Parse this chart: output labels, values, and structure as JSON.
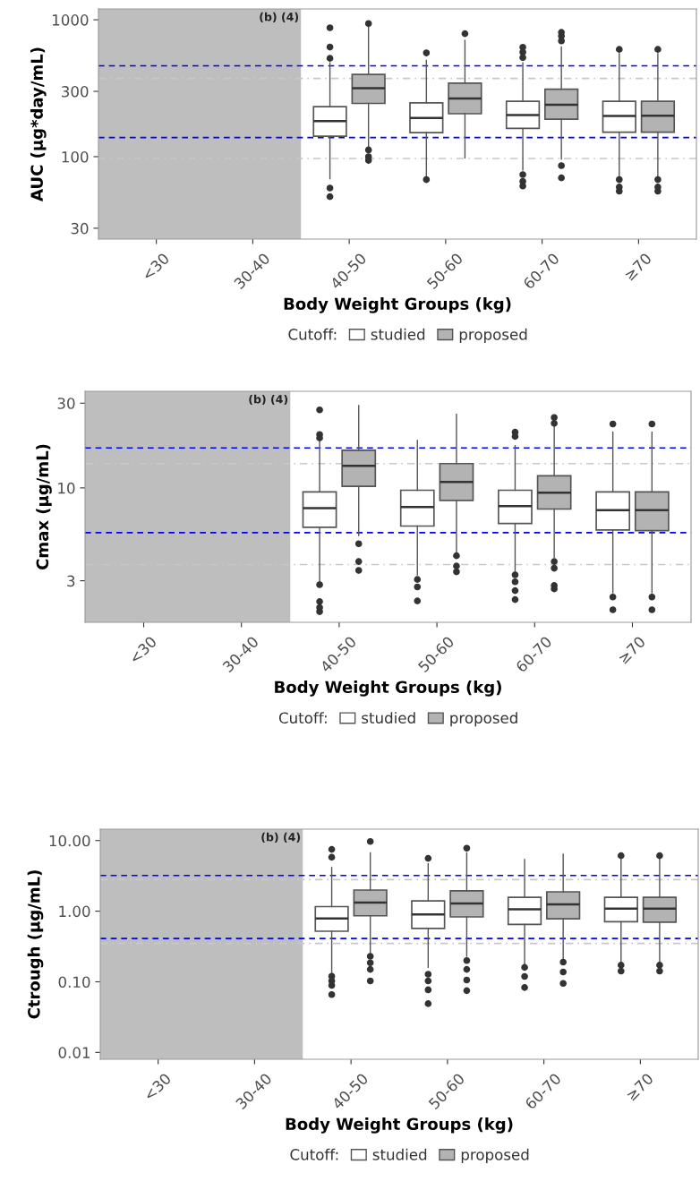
{
  "chart_data": [
    {
      "type": "box",
      "categories": [
        "<30",
        "30-40",
        "40-50",
        "50-60",
        "60-70",
        "≥70"
      ],
      "xlabel": "Body Weight Groups (kg)",
      "ylabel": "AUC (µg*day/mL)",
      "log": true,
      "ylim": [
        25,
        1200
      ],
      "yticks": [
        30,
        100,
        300,
        1000
      ],
      "grid": false,
      "legend": "bottom",
      "legend_title": "Cutoff:",
      "series": [
        {
          "name": "studied",
          "color": "#ffffff",
          "boxes": [
            null,
            null,
            {
              "low": 69,
              "q1": 141,
              "median": 182,
              "q3": 232,
              "high": 485,
              "outliers": [
                874,
                632,
                523,
                59,
                51
              ]
            },
            {
              "low": 71,
              "q1": 150,
              "median": 192,
              "q3": 247,
              "high": 505,
              "outliers": [
                573,
                68
              ]
            },
            {
              "low": 80,
              "q1": 161,
              "median": 201,
              "q3": 254,
              "high": 485,
              "outliers": [
                630,
                580,
                530,
                74,
                66,
                61
              ]
            },
            {
              "low": 71,
              "q1": 151,
              "median": 198,
              "q3": 254,
              "high": 565,
              "outliers": [
                608,
                68,
                60,
                56
              ]
            }
          ]
        },
        {
          "name": "proposed",
          "color": "#b3b3b3",
          "boxes": [
            null,
            null,
            {
              "low": 116,
              "q1": 245,
              "median": 316,
              "q3": 399,
              "high": 900,
              "outliers": [
                940,
                112,
                100,
                94
              ]
            },
            {
              "low": 98,
              "q1": 206,
              "median": 266,
              "q3": 344,
              "high": 708,
              "outliers": [
                792
              ]
            },
            {
              "low": 96,
              "q1": 188,
              "median": 239,
              "q3": 311,
              "high": 632,
              "outliers": [
                810,
                760,
                700,
                86,
                70
              ]
            },
            {
              "low": 71,
              "q1": 151,
              "median": 199,
              "q3": 254,
              "high": 565,
              "outliers": [
                608,
                68,
                60,
                56
              ]
            }
          ]
        }
      ],
      "ref_lines": [
        {
          "axis": "y",
          "value": 461,
          "color": "#0000ff",
          "line_style": "dashed"
        },
        {
          "axis": "y",
          "value": 138,
          "color": "#0000ff",
          "line_style": "dashed"
        },
        {
          "axis": "y",
          "value": 373,
          "color": "#c8c8c8",
          "line_style": "dashdot"
        },
        {
          "axis": "y",
          "value": 97,
          "color": "#c8c8c8",
          "line_style": "dashdot"
        }
      ],
      "annotations": [
        "(b) (4)"
      ]
    },
    {
      "type": "box",
      "categories": [
        "<30",
        "30-40",
        "40-50",
        "50-60",
        "60-70",
        "≥70"
      ],
      "xlabel": "Body Weight Groups (kg)",
      "ylabel": "Cmax (µg/mL)",
      "log": true,
      "ylim": [
        1.75,
        35
      ],
      "yticks": [
        3,
        10,
        30
      ],
      "grid": false,
      "legend": "bottom",
      "legend_title": "Cutoff:",
      "series": [
        {
          "name": "studied",
          "color": "#ffffff",
          "boxes": [
            null,
            null,
            {
              "low": 2.96,
              "q1": 6.0,
              "median": 7.7,
              "q3": 9.5,
              "high": 18.3,
              "outliers": [
                27.5,
                20,
                19.1,
                2.85,
                2.29,
                2.12,
                2.01
              ]
            },
            {
              "low": 3.24,
              "q1": 6.1,
              "median": 7.8,
              "q3": 9.7,
              "high": 18.5,
              "outliers": [
                3.05,
                2.77,
                2.31
              ]
            },
            {
              "low": 3.37,
              "q1": 6.3,
              "median": 7.9,
              "q3": 9.7,
              "high": 17.3,
              "outliers": [
                20.6,
                19.5,
                3.24,
                2.96,
                2.64,
                2.35
              ]
            },
            {
              "low": 2.57,
              "q1": 5.8,
              "median": 7.5,
              "q3": 9.5,
              "high": 20.6,
              "outliers": [
                22.9,
                2.43,
                2.06
              ]
            }
          ]
        },
        {
          "name": "proposed",
          "color": "#b3b3b3",
          "boxes": [
            null,
            null,
            {
              "low": 5.4,
              "q1": 10.2,
              "median": 13.3,
              "q3": 16.3,
              "high": 29.1,
              "outliers": [
                4.85,
                3.85,
                3.43
              ]
            },
            {
              "low": 4.3,
              "q1": 8.5,
              "median": 10.8,
              "q3": 13.7,
              "high": 26,
              "outliers": [
                4.15,
                3.63,
                3.37
              ]
            },
            {
              "low": 4.07,
              "q1": 7.6,
              "median": 9.4,
              "q3": 11.7,
              "high": 22.5,
              "outliers": [
                24.9,
                23.1,
                3.85,
                3.53,
                2.82,
                2.7
              ]
            },
            {
              "low": 2.57,
              "q1": 5.75,
              "median": 7.5,
              "q3": 9.5,
              "high": 20.6,
              "outliers": [
                22.9,
                2.43,
                2.06
              ]
            }
          ]
        }
      ],
      "ref_lines": [
        {
          "axis": "y",
          "value": 16.8,
          "color": "#0000ff",
          "line_style": "dashed"
        },
        {
          "axis": "y",
          "value": 5.6,
          "color": "#0000ff",
          "line_style": "dashed"
        },
        {
          "axis": "y",
          "value": 13.7,
          "color": "#c8c8c8",
          "line_style": "dashdot"
        },
        {
          "axis": "y",
          "value": 3.7,
          "color": "#c8c8c8",
          "line_style": "dashdot"
        }
      ],
      "annotations": [
        "(b) (4)"
      ]
    },
    {
      "type": "box",
      "categories": [
        "<30",
        "30-40",
        "40-50",
        "50-60",
        "60-70",
        "≥70"
      ],
      "xlabel": "Body Weight Groups (kg)",
      "ylabel": "Ctrough (µg/mL)",
      "log": true,
      "ylim": [
        0.008,
        14.5
      ],
      "yticks": [
        {
          "value": 0.01,
          "label": "0.01"
        },
        {
          "value": 0.1,
          "label": "0.10"
        },
        {
          "value": 1,
          "label": "1.00"
        },
        {
          "value": 10,
          "label": "10.00"
        }
      ],
      "grid": false,
      "legend": "bottom",
      "legend_title": "Cutoff:",
      "series": [
        {
          "name": "studied",
          "color": "#ffffff",
          "boxes": [
            null,
            null,
            {
              "low": 0.128,
              "q1": 0.52,
              "median": 0.79,
              "q3": 1.16,
              "high": 4.15,
              "outliers": [
                7.5,
                5.8,
                0.12,
                0.103,
                0.089,
                0.066
              ]
            },
            {
              "low": 0.16,
              "q1": 0.57,
              "median": 0.9,
              "q3": 1.4,
              "high": 4.7,
              "outliers": [
                5.6,
                0.128,
                0.103,
                0.077,
                0.049
              ]
            },
            {
              "low": 0.172,
              "q1": 0.65,
              "median": 1.06,
              "q3": 1.57,
              "high": 5.4,
              "outliers": [
                0.16,
                0.119,
                0.083
              ]
            },
            {
              "low": 0.19,
              "q1": 0.71,
              "median": 1.09,
              "q3": 1.57,
              "high": 5.9,
              "outliers": [
                6.1,
                0.172,
                0.142
              ]
            }
          ]
        },
        {
          "name": "proposed",
          "color": "#b3b3b3",
          "boxes": [
            null,
            null,
            {
              "low": 0.248,
              "q1": 0.86,
              "median": 1.32,
              "q3": 1.99,
              "high": 6.7,
              "outliers": [
                9.7,
                0.23,
                0.186,
                0.15,
                0.103
              ]
            },
            {
              "low": 0.23,
              "q1": 0.83,
              "median": 1.29,
              "q3": 1.94,
              "high": 6.7,
              "outliers": [
                7.8,
                0.2,
                0.15,
                0.106,
                0.075
              ]
            },
            {
              "low": 0.208,
              "q1": 0.78,
              "median": 1.25,
              "q3": 1.88,
              "high": 6.4,
              "outliers": [
                0.19,
                0.138,
                0.095
              ]
            },
            {
              "low": 0.19,
              "q1": 0.7,
              "median": 1.09,
              "q3": 1.57,
              "high": 5.9,
              "outliers": [
                6.1,
                0.172,
                0.142
              ]
            }
          ]
        }
      ],
      "ref_lines": [
        {
          "axis": "y",
          "value": 3.2,
          "color": "#0000ff",
          "line_style": "dashed"
        },
        {
          "axis": "y",
          "value": 0.41,
          "color": "#0000ff",
          "line_style": "dashed"
        },
        {
          "axis": "y",
          "value": 2.8,
          "color": "#c8c8c8",
          "line_style": "dashdot"
        },
        {
          "axis": "y",
          "value": 0.35,
          "color": "#c8c8c8",
          "line_style": "dashdot"
        }
      ],
      "annotations": [
        "(b) (4)"
      ]
    }
  ]
}
